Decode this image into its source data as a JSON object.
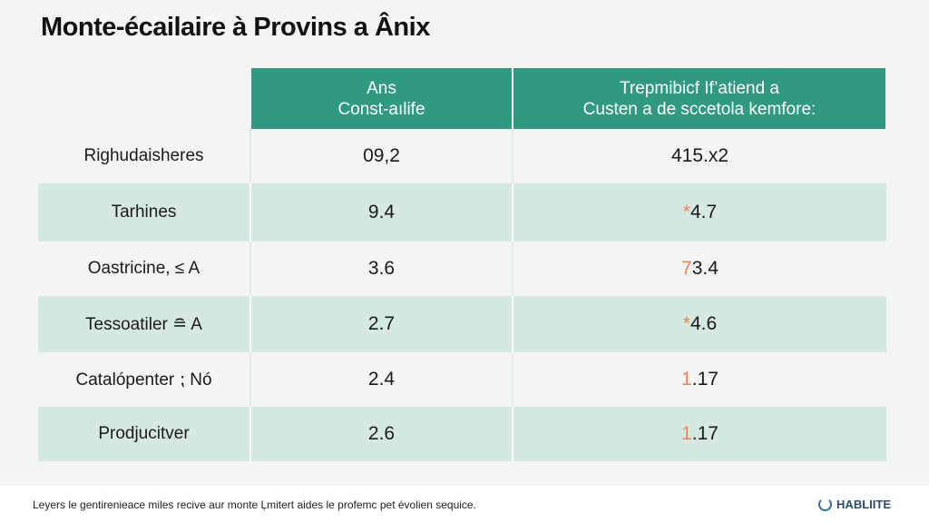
{
  "title": "Monte-écailaire à Provins a Ânix",
  "table": {
    "headers": [
      {
        "line1": "Ans",
        "line2": "Const-aılife"
      },
      {
        "line1": "Trepmibicf If’atiend a",
        "line2": "Custen a de sccetola kemfore:"
      }
    ],
    "rows": [
      {
        "label": "Righudaisheres",
        "v1": "09,2",
        "v2_prefix": "",
        "v2": "415.x2"
      },
      {
        "label": "Tarhines",
        "v1": "9.4",
        "v2_prefix": "*",
        "v2": "4.7"
      },
      {
        "label": "Oastricine, ≤ A",
        "v1": "3.6",
        "v2_prefix": "7",
        "v2": "3.4"
      },
      {
        "label": "Tessoatiler ≘ A",
        "v1": "2.7",
        "v2_prefix": "*",
        "v2": "4.6"
      },
      {
        "label": "Catalópenter ⁏ Nó",
        "v1": "2.4",
        "v2_prefix": "1",
        "v2": ".17"
      },
      {
        "label": "Prodjucitver",
        "v1": "2.6",
        "v2_prefix": "1",
        "v2": ".17"
      }
    ]
  },
  "footer": {
    "note": "Leyers le gentirenieace miles recive aur monte Ļmitert aides le profemc pet évolien sequice.",
    "brand": "HABLIITE"
  },
  "colors": {
    "header": "#2f9a80",
    "alt_row": "#d5e8e2",
    "accent": "#e8875a"
  }
}
